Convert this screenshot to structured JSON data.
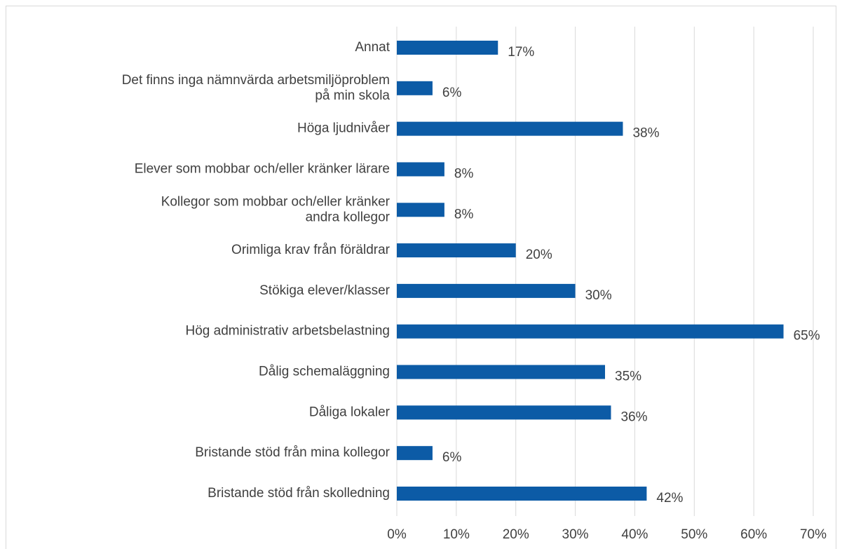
{
  "chart_data": {
    "type": "barh",
    "categories": [
      "Annat",
      "Det finns inga nämnvärda arbetsmiljöproblem\npå min skola",
      "Höga ljudnivåer",
      "Elever som mobbar och/eller kränker lärare",
      "Kollegor som mobbar och/eller kränker\nandra kollegor",
      "Orimliga krav från föräldrar",
      "Stökiga elever/klasser ",
      "Hög administrativ arbetsbelastning",
      "Dålig schemaläggning",
      "Dåliga lokaler ",
      "Bristande stöd från mina kollegor",
      "Bristande stöd från skolledning"
    ],
    "values": [
      17,
      6,
      38,
      8,
      8,
      20,
      30,
      65,
      35,
      36,
      6,
      42
    ],
    "value_labels": [
      "17%",
      "6%",
      "38%",
      "8%",
      "8%",
      "20%",
      "30%",
      "65%",
      "35%",
      "36%",
      "6%",
      "42%"
    ],
    "color": "#0c5ba6",
    "xlim": [
      0,
      70
    ],
    "xticks": [
      {
        "value": 0,
        "label": "0%"
      },
      {
        "value": 10,
        "label": "10%"
      },
      {
        "value": 20,
        "label": "20%"
      },
      {
        "value": 30,
        "label": "30%"
      },
      {
        "value": 40,
        "label": "40%"
      },
      {
        "value": 50,
        "label": "50%"
      },
      {
        "value": 60,
        "label": "60%"
      },
      {
        "value": 70,
        "label": "70%"
      }
    ],
    "grid": true
  }
}
